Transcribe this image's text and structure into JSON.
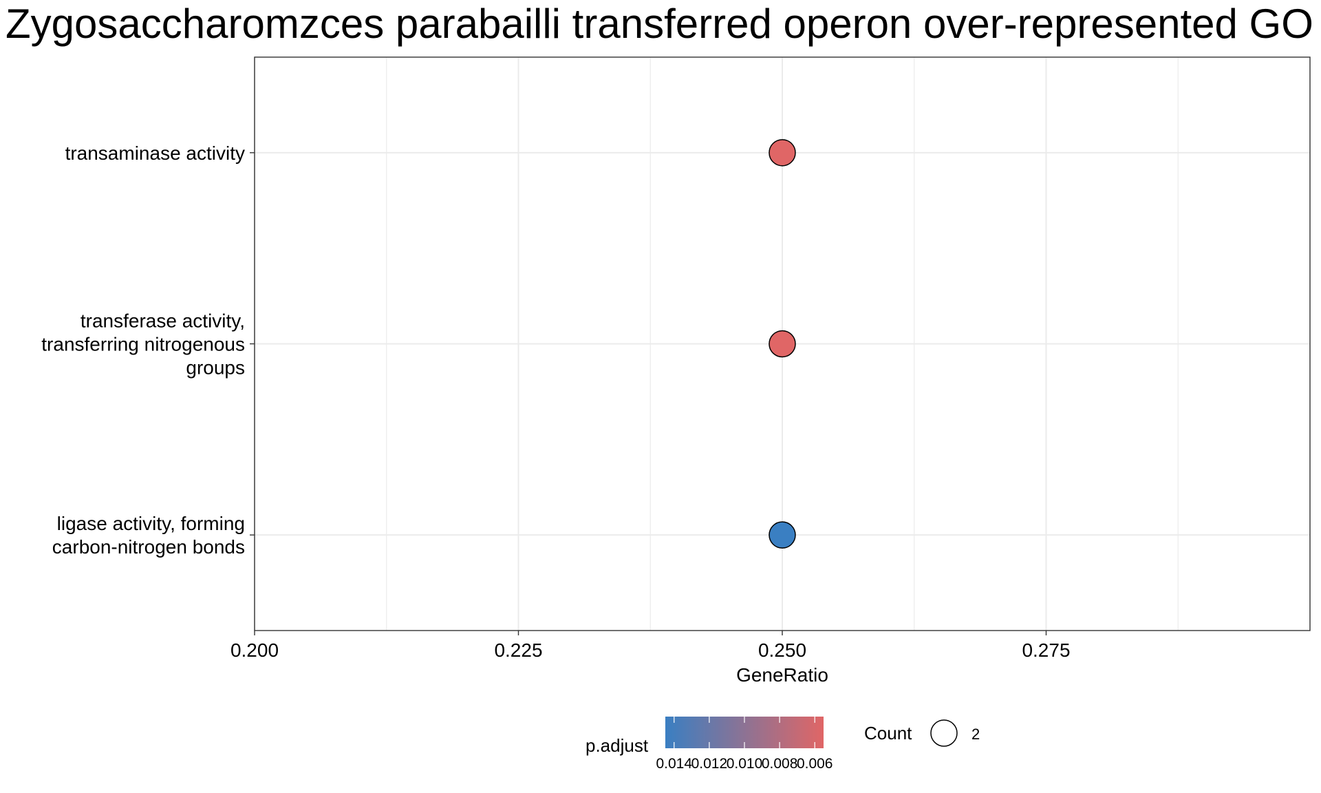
{
  "chart_data": {
    "type": "scatter",
    "title": "Zygosaccharomzces parabailli transferred operon over-represented GO M",
    "xlabel": "GeneRatio",
    "ylabel": "",
    "xlim": [
      0.2,
      0.3
    ],
    "x_ticks": [
      "0.200",
      "0.225",
      "0.250",
      "0.275"
    ],
    "x_tick_values": [
      0.2,
      0.225,
      0.25,
      0.275
    ],
    "grid": true,
    "categories": [
      [
        "transaminase activity"
      ],
      [
        "transferase activity,",
        "transferring nitrogenous",
        "groups"
      ],
      [
        "ligase activity, forming",
        "carbon-nitrogen bonds"
      ]
    ],
    "points": [
      {
        "term": "transaminase activity",
        "gene_ratio": 0.25,
        "p_adjust": 0.0055,
        "count": 2
      },
      {
        "term": "transferase activity, transferring nitrogenous groups",
        "gene_ratio": 0.25,
        "p_adjust": 0.0055,
        "count": 2
      },
      {
        "term": "ligase activity, forming carbon-nitrogen bonds",
        "gene_ratio": 0.25,
        "p_adjust": 0.0145,
        "count": 2
      }
    ],
    "legend": {
      "placement": "bottom",
      "color_title": "p.adjust",
      "color_ticks": [
        "0.014",
        "0.012",
        "0.010",
        "0.008",
        "0.006"
      ],
      "color_tick_values": [
        0.014,
        0.012,
        0.01,
        0.008,
        0.006
      ],
      "color_range": [
        0.0145,
        0.0055
      ],
      "color_low": "#3a7fc2",
      "color_high": "#e06666",
      "size_title": "Count",
      "size_items": [
        "2"
      ]
    }
  }
}
